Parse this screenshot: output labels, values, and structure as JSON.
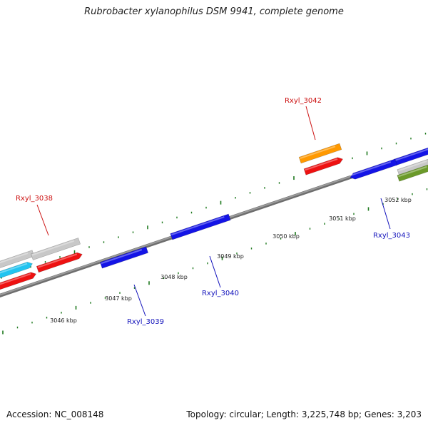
{
  "title": "Rubrobacter xylanophilus DSM 9941, complete genome",
  "footer": {
    "accession": "Accession: NC_008148",
    "summary": "Topology: circular; Length: 3,225,748 bp; Genes: 3,203"
  },
  "colors": {
    "backbone": "#8c8c8c",
    "tick": "#1f7a1f",
    "gene_red": "#ee1111",
    "gene_blue": "#1414e6",
    "gene_cyan": "#22c4f0",
    "gene_gray": "#c8c8c8",
    "gene_orange": "#ff9900",
    "gene_olive": "#6b9a2a",
    "label_red": "#cc1111",
    "label_blue": "#1111bb"
  },
  "scale_labels": [
    "3046 kbp",
    "3047 kbp",
    "3048 kbp",
    "3049 kbp",
    "3050 kbp",
    "3051 kbp",
    "3052 kbp"
  ],
  "gene_labels": [
    {
      "text": "Rxyl_3038",
      "color": "label_red"
    },
    {
      "text": "Rxyl_3042",
      "color": "label_red"
    },
    {
      "text": "Rxyl_3039",
      "color": "label_blue"
    },
    {
      "text": "Rxyl_3040",
      "color": "label_blue"
    },
    {
      "text": "Rxyl_3043",
      "color": "label_blue"
    }
  ]
}
